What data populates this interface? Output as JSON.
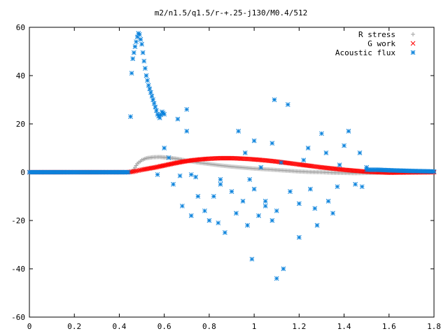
{
  "chart_data": {
    "type": "scatter",
    "title": "m2/n1.5/q1.5/r-+.25-j130/M0.4/512",
    "xlabel": "",
    "ylabel": "",
    "xlim": [
      0,
      1.8
    ],
    "ylim": [
      -60,
      60
    ],
    "xticks": [
      0,
      0.2,
      0.4,
      0.6,
      0.8,
      1,
      1.2,
      1.4,
      1.6,
      1.8
    ],
    "xtick_labels": [
      "0",
      "0.2",
      "0.4",
      "0.6",
      "0.8",
      "1",
      "1.2",
      "1.4",
      "1.6",
      "1.8"
    ],
    "yticks": [
      -60,
      -40,
      -20,
      0,
      20,
      40,
      60
    ],
    "ytick_labels": [
      "-60",
      "-40",
      "-20",
      "0",
      "20",
      "40",
      "60"
    ],
    "grid": false,
    "legend_position": "top-right",
    "series": [
      {
        "name": "R stress",
        "marker": "plus",
        "color": "#a0a0a0",
        "points": [
          [
            0,
            0
          ],
          [
            0.1,
            0
          ],
          [
            0.2,
            0
          ],
          [
            0.3,
            0
          ],
          [
            0.4,
            0
          ],
          [
            0.44,
            0
          ],
          [
            0.46,
            0.5
          ],
          [
            0.47,
            2
          ],
          [
            0.48,
            3.5
          ],
          [
            0.5,
            5
          ],
          [
            0.52,
            5.8
          ],
          [
            0.55,
            6.2
          ],
          [
            0.58,
            6.3
          ],
          [
            0.62,
            6
          ],
          [
            0.66,
            5.5
          ],
          [
            0.7,
            4.8
          ],
          [
            0.75,
            4
          ],
          [
            0.8,
            3.4
          ],
          [
            0.85,
            2.8
          ],
          [
            0.9,
            2.3
          ],
          [
            0.95,
            1.9
          ],
          [
            1.0,
            1.5
          ],
          [
            1.05,
            1.2
          ],
          [
            1.1,
            0.9
          ],
          [
            1.15,
            0.6
          ],
          [
            1.2,
            0.3
          ],
          [
            1.25,
            0.1
          ],
          [
            1.3,
            0
          ],
          [
            1.35,
            -0.2
          ],
          [
            1.4,
            -0.3
          ],
          [
            1.45,
            -0.4
          ],
          [
            1.5,
            -0.3
          ],
          [
            1.55,
            -0.2
          ],
          [
            1.6,
            0
          ],
          [
            1.7,
            0
          ],
          [
            1.8,
            0
          ]
        ]
      },
      {
        "name": "G work",
        "marker": "cross",
        "color": "#ff0000",
        "points": [
          [
            0,
            0
          ],
          [
            0.2,
            0
          ],
          [
            0.44,
            0
          ],
          [
            0.46,
            0.2
          ],
          [
            0.48,
            0.6
          ],
          [
            0.5,
            1
          ],
          [
            0.53,
            1.5
          ],
          [
            0.56,
            2
          ],
          [
            0.6,
            2.8
          ],
          [
            0.64,
            3.6
          ],
          [
            0.68,
            4.3
          ],
          [
            0.72,
            4.9
          ],
          [
            0.76,
            5.3
          ],
          [
            0.8,
            5.6
          ],
          [
            0.85,
            5.8
          ],
          [
            0.9,
            5.8
          ],
          [
            0.95,
            5.6
          ],
          [
            1.0,
            5.3
          ],
          [
            1.05,
            4.9
          ],
          [
            1.1,
            4.4
          ],
          [
            1.15,
            3.8
          ],
          [
            1.2,
            3.2
          ],
          [
            1.25,
            2.6
          ],
          [
            1.3,
            2
          ],
          [
            1.35,
            1.5
          ],
          [
            1.4,
            1
          ],
          [
            1.45,
            0.6
          ],
          [
            1.5,
            0.2
          ],
          [
            1.55,
            0
          ],
          [
            1.6,
            -0.2
          ],
          [
            1.7,
            -0.1
          ],
          [
            1.8,
            0
          ]
        ]
      },
      {
        "name": "Acoustic flux",
        "marker": "star",
        "color": "#0a82dc",
        "points": [
          [
            0,
            0
          ],
          [
            0.05,
            0
          ],
          [
            0.1,
            0
          ],
          [
            0.15,
            0
          ],
          [
            0.2,
            0
          ],
          [
            0.25,
            0
          ],
          [
            0.3,
            0
          ],
          [
            0.35,
            0
          ],
          [
            0.4,
            0
          ],
          [
            0.44,
            0
          ],
          [
            0.45,
            23
          ],
          [
            0.455,
            41
          ],
          [
            0.46,
            47
          ],
          [
            0.47,
            52
          ],
          [
            0.48,
            56
          ],
          [
            0.485,
            57.5
          ],
          [
            0.49,
            57
          ],
          [
            0.5,
            53
          ],
          [
            0.51,
            46
          ],
          [
            0.52,
            40
          ],
          [
            0.53,
            36
          ],
          [
            0.54,
            33
          ],
          [
            0.55,
            30
          ],
          [
            0.56,
            27
          ],
          [
            0.57,
            24
          ],
          [
            0.58,
            22.5
          ],
          [
            0.59,
            25
          ],
          [
            0.6,
            24
          ],
          [
            0.57,
            -1
          ],
          [
            0.6,
            10
          ],
          [
            0.62,
            6
          ],
          [
            0.64,
            -5
          ],
          [
            0.66,
            22
          ],
          [
            0.67,
            -1.5
          ],
          [
            0.7,
            26
          ],
          [
            0.72,
            -1
          ],
          [
            0.74,
            -2
          ],
          [
            0.7,
            17
          ],
          [
            0.68,
            -14
          ],
          [
            0.72,
            -18
          ],
          [
            0.75,
            -10
          ],
          [
            0.78,
            -16
          ],
          [
            0.8,
            -20
          ],
          [
            0.82,
            -10
          ],
          [
            0.84,
            -21
          ],
          [
            0.85,
            -5
          ],
          [
            0.87,
            -25
          ],
          [
            0.9,
            -8
          ],
          [
            0.92,
            -17
          ],
          [
            0.95,
            -12
          ],
          [
            0.97,
            -22
          ],
          [
            1.0,
            -7
          ],
          [
            1.02,
            -18
          ],
          [
            1.05,
            -14
          ],
          [
            1.08,
            -20
          ],
          [
            1.1,
            -44
          ],
          [
            1.13,
            -40
          ],
          [
            0.99,
            -36
          ],
          [
            1.2,
            -27
          ],
          [
            0.96,
            8
          ],
          [
            0.98,
            -3
          ],
          [
            1.0,
            13
          ],
          [
            1.03,
            2
          ],
          [
            1.05,
            -12
          ],
          [
            1.08,
            12
          ],
          [
            1.1,
            -16
          ],
          [
            1.12,
            4
          ],
          [
            1.15,
            28
          ],
          [
            1.2,
            -13
          ],
          [
            1.22,
            5
          ],
          [
            1.25,
            -7
          ],
          [
            1.27,
            -15
          ],
          [
            1.3,
            16
          ],
          [
            1.32,
            8
          ],
          [
            1.35,
            -17
          ],
          [
            1.37,
            -6
          ],
          [
            1.4,
            11
          ],
          [
            1.42,
            17
          ],
          [
            1.45,
            -5
          ],
          [
            1.47,
            8
          ],
          [
            1.5,
            2
          ],
          [
            1.09,
            30
          ],
          [
            0.85,
            -3
          ],
          [
            1.28,
            -22
          ],
          [
            1.33,
            -12
          ],
          [
            0.93,
            17
          ],
          [
            1.38,
            3
          ],
          [
            1.16,
            -8
          ],
          [
            1.24,
            10
          ],
          [
            1.48,
            -6
          ],
          [
            1.5,
            1
          ],
          [
            1.55,
            1
          ],
          [
            1.6,
            0.8
          ],
          [
            1.7,
            0.5
          ],
          [
            1.8,
            0.3
          ]
        ]
      }
    ]
  }
}
